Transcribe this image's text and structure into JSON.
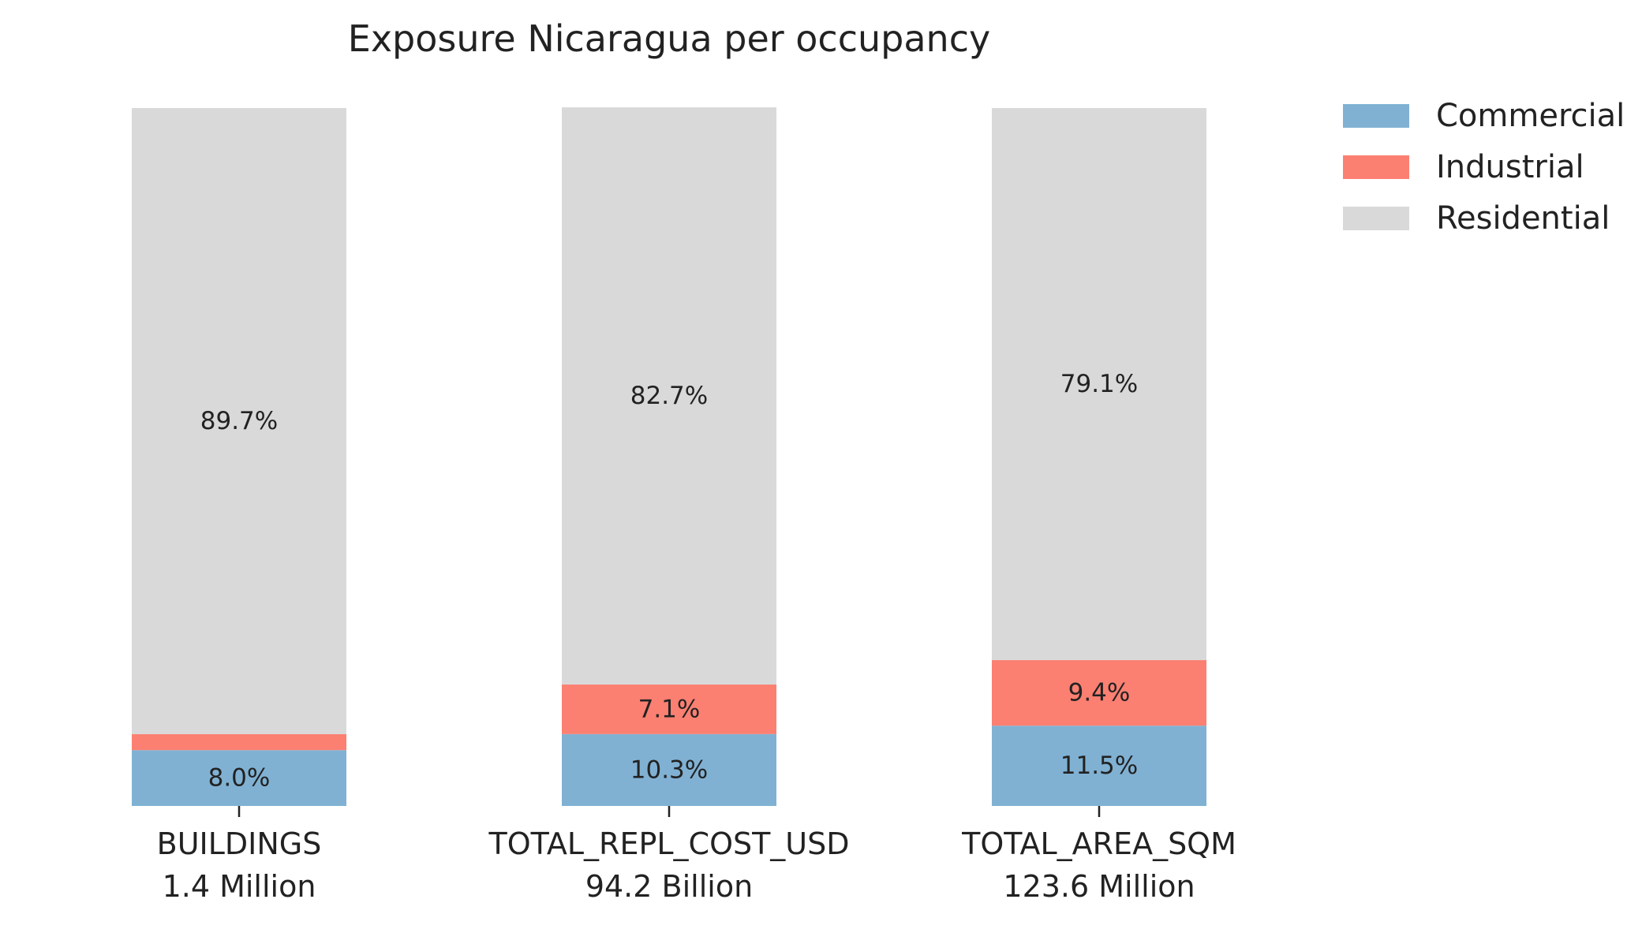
{
  "chart_data": {
    "type": "bar",
    "stacked": true,
    "normalized_percent": true,
    "title": "Exposure Nicaragua per occupancy",
    "xlabel": "",
    "ylabel": "",
    "ylim": [
      0,
      100
    ],
    "grid": false,
    "legend_placement": "top-right, outside plot",
    "categories": [
      {
        "name": "BUILDINGS",
        "total": "1.4 Million"
      },
      {
        "name": "TOTAL_REPL_COST_USD",
        "total": "94.2 Billion"
      },
      {
        "name": "TOTAL_AREA_SQM",
        "total": "123.6 Million"
      }
    ],
    "series": [
      {
        "name": "Commercial",
        "color": "#80b1d3",
        "values": [
          8.0,
          10.3,
          11.5
        ],
        "labels": [
          "8.0%",
          "10.3%",
          "11.5%"
        ]
      },
      {
        "name": "Industrial",
        "color": "#fb8072",
        "values": [
          2.3,
          7.1,
          9.4
        ],
        "labels": [
          "",
          "7.1%",
          "9.4%"
        ]
      },
      {
        "name": "Residential",
        "color": "#d9d9d9",
        "values": [
          89.7,
          82.7,
          79.1
        ],
        "labels": [
          "89.7%",
          "82.7%",
          "79.1%"
        ]
      }
    ]
  }
}
